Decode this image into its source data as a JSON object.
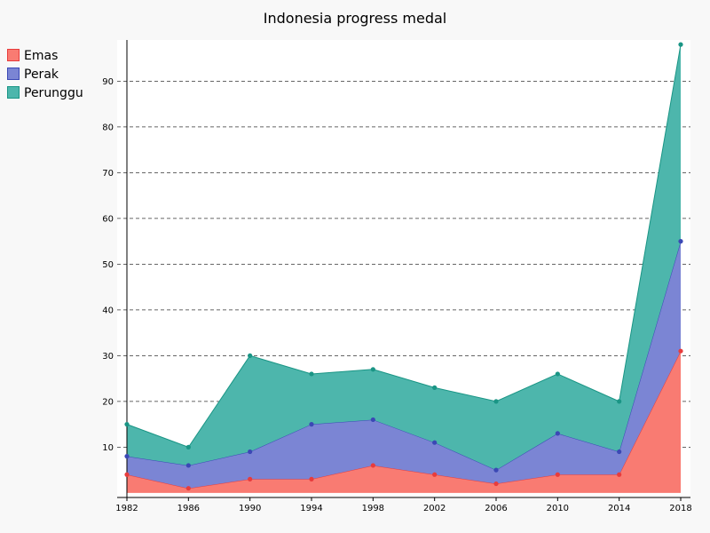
{
  "chart_data": {
    "type": "area",
    "stacked": true,
    "title": "Indonesia progress medal",
    "xlabel": "",
    "ylabel": "",
    "x": [
      1982,
      1986,
      1990,
      1994,
      1998,
      2002,
      2006,
      2010,
      2014,
      2018
    ],
    "x_tick_labels": [
      "1982",
      "1986",
      "1990",
      "1994",
      "1998",
      "2002",
      "2006",
      "2010",
      "2014",
      "2018"
    ],
    "y_ticks": [
      10,
      20,
      30,
      40,
      50,
      60,
      70,
      80,
      90
    ],
    "y_tick_labels": [
      "10",
      "20",
      "30",
      "40",
      "50",
      "60",
      "70",
      "80",
      "90"
    ],
    "ylim": [
      -1,
      99
    ],
    "grid": "horizontal dashed",
    "legend_position": "top-left",
    "series": [
      {
        "name": "Emas",
        "values": [
          4,
          1,
          3,
          3,
          6,
          4,
          2,
          4,
          4,
          31
        ],
        "color": "#f97b72",
        "line_color": "#e83c3c"
      },
      {
        "name": "Perak",
        "values": [
          4,
          5,
          6,
          12,
          10,
          7,
          3,
          9,
          5,
          24
        ],
        "color": "#7b85d4",
        "line_color": "#3b48b5"
      },
      {
        "name": "Perunggu",
        "values": [
          7,
          4,
          21,
          11,
          11,
          12,
          15,
          13,
          11,
          43
        ],
        "color": "#4db6ac",
        "line_color": "#1a9585"
      }
    ]
  }
}
